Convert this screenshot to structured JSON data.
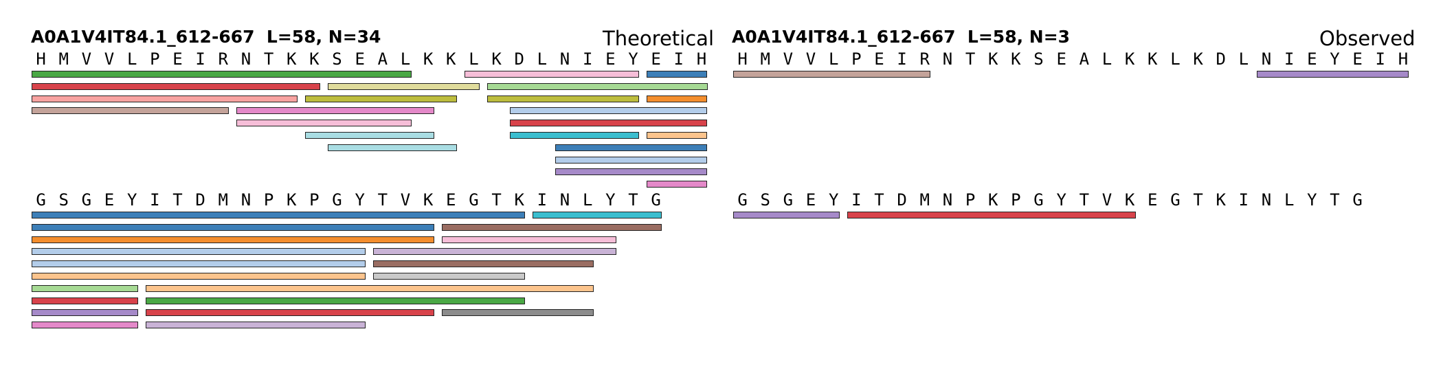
{
  "panels": [
    {
      "id": "theoretical",
      "title": "A0A1V4IT84.1_612-667  L=58, N=34",
      "label": "Theoretical",
      "rows": [
        {
          "sequence": "HMVVLPEIRNTKKSEALKKLKDLNIEYEIH",
          "peptides": [
            {
              "start": 0,
              "end": 16,
              "lane": 0,
              "color": "#4aa845"
            },
            {
              "start": 19,
              "end": 26,
              "lane": 0,
              "color": "#f6bed8"
            },
            {
              "start": 27,
              "end": 29,
              "lane": 0,
              "color": "#3d7fb8"
            },
            {
              "start": 0,
              "end": 12,
              "lane": 1,
              "color": "#d8434b"
            },
            {
              "start": 13,
              "end": 19,
              "lane": 1,
              "color": "#e0dc9c"
            },
            {
              "start": 20,
              "end": 29,
              "lane": 1,
              "color": "#a6da94"
            },
            {
              "start": 0,
              "end": 11,
              "lane": 2,
              "color": "#f7a3a1"
            },
            {
              "start": 12,
              "end": 18,
              "lane": 2,
              "color": "#bdbd3e"
            },
            {
              "start": 20,
              "end": 26,
              "lane": 2,
              "color": "#bdbd3e"
            },
            {
              "start": 27,
              "end": 29,
              "lane": 2,
              "color": "#f48e2e"
            },
            {
              "start": 0,
              "end": 8,
              "lane": 3,
              "color": "#c4a39a"
            },
            {
              "start": 9,
              "end": 17,
              "lane": 3,
              "color": "#e489c9"
            },
            {
              "start": 21,
              "end": 29,
              "lane": 3,
              "color": "#b3cdea"
            },
            {
              "start": 9,
              "end": 16,
              "lane": 4,
              "color": "#f6bed8"
            },
            {
              "start": 21,
              "end": 29,
              "lane": 4,
              "color": "#d8434b"
            },
            {
              "start": 12,
              "end": 17,
              "lane": 5,
              "color": "#a9dde3"
            },
            {
              "start": 21,
              "end": 26,
              "lane": 5,
              "color": "#3bbecf"
            },
            {
              "start": 27,
              "end": 29,
              "lane": 5,
              "color": "#fcc48d"
            },
            {
              "start": 13,
              "end": 18,
              "lane": 6,
              "color": "#a9dde3"
            },
            {
              "start": 23,
              "end": 29,
              "lane": 6,
              "color": "#3d7fb8"
            },
            {
              "start": 23,
              "end": 29,
              "lane": 7,
              "color": "#b3cdea"
            },
            {
              "start": 23,
              "end": 29,
              "lane": 8,
              "color": "#a68ac9"
            },
            {
              "start": 27,
              "end": 29,
              "lane": 9,
              "color": "#e489c9"
            }
          ]
        },
        {
          "sequence": "GSGEYITDMNPKPGYTVKEGTKINLYTG",
          "peptides": [
            {
              "start": 0,
              "end": 21,
              "lane": 0,
              "color": "#3d7fb8"
            },
            {
              "start": 22,
              "end": 27,
              "lane": 0,
              "color": "#3bbecf"
            },
            {
              "start": 0,
              "end": 17,
              "lane": 1,
              "color": "#3d7fb8"
            },
            {
              "start": 18,
              "end": 27,
              "lane": 1,
              "color": "#9a6d62"
            },
            {
              "start": 0,
              "end": 17,
              "lane": 2,
              "color": "#f48e2e"
            },
            {
              "start": 18,
              "end": 25,
              "lane": 2,
              "color": "#f6bed8"
            },
            {
              "start": 0,
              "end": 14,
              "lane": 3,
              "color": "#b3cdea"
            },
            {
              "start": 15,
              "end": 25,
              "lane": 3,
              "color": "#c9b3d6"
            },
            {
              "start": 0,
              "end": 14,
              "lane": 4,
              "color": "#b3cdea"
            },
            {
              "start": 15,
              "end": 24,
              "lane": 4,
              "color": "#9a6d62"
            },
            {
              "start": 0,
              "end": 14,
              "lane": 5,
              "color": "#fcc48d"
            },
            {
              "start": 15,
              "end": 21,
              "lane": 5,
              "color": "#c9c9c9"
            },
            {
              "start": 0,
              "end": 4,
              "lane": 6,
              "color": "#a6da94"
            },
            {
              "start": 5,
              "end": 24,
              "lane": 6,
              "color": "#fcc48d"
            },
            {
              "start": 0,
              "end": 4,
              "lane": 7,
              "color": "#d8434b"
            },
            {
              "start": 5,
              "end": 21,
              "lane": 7,
              "color": "#4aa845"
            },
            {
              "start": 0,
              "end": 4,
              "lane": 8,
              "color": "#a68ac9"
            },
            {
              "start": 5,
              "end": 17,
              "lane": 8,
              "color": "#d8434b"
            },
            {
              "start": 18,
              "end": 24,
              "lane": 8,
              "color": "#8c8c8c"
            },
            {
              "start": 0,
              "end": 4,
              "lane": 9,
              "color": "#e489c9"
            },
            {
              "start": 5,
              "end": 14,
              "lane": 9,
              "color": "#c9b3d6"
            }
          ]
        }
      ]
    },
    {
      "id": "observed",
      "title": "A0A1V4IT84.1_612-667  L=58, N=3",
      "label": "Observed",
      "rows": [
        {
          "sequence": "HMVVLPEIRNTKKSEALKKLKDLNIEYEIH",
          "peptides": [
            {
              "start": 0,
              "end": 8,
              "lane": 0,
              "color": "#c4a39a"
            },
            {
              "start": 23,
              "end": 29,
              "lane": 0,
              "color": "#a68ac9"
            }
          ]
        },
        {
          "sequence": "GSGEYITDMNPKPGYTVKEGTKINLYTG",
          "peptides": [
            {
              "start": 0,
              "end": 4,
              "lane": 0,
              "color": "#a68ac9"
            },
            {
              "start": 5,
              "end": 17,
              "lane": 0,
              "color": "#d8434b"
            }
          ]
        }
      ]
    }
  ]
}
